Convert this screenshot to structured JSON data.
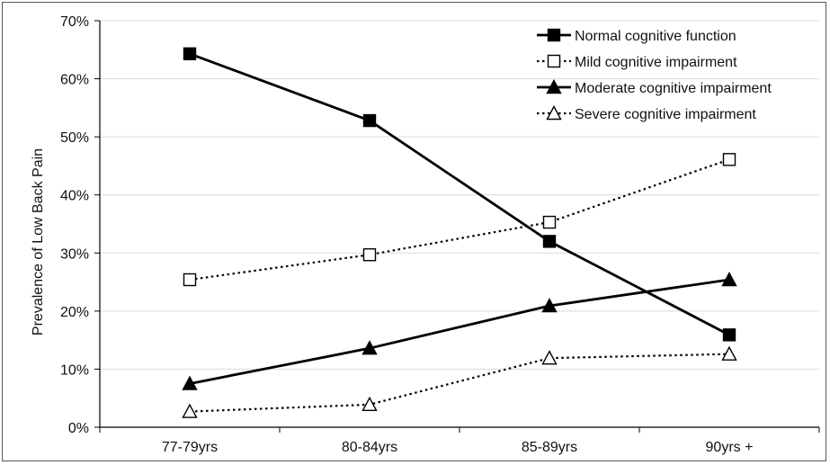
{
  "chart_data": {
    "type": "line",
    "categories": [
      "77-79yrs",
      "80-84yrs",
      "85-89yrs",
      "90yrs +"
    ],
    "ylabel": "Prevalence of Low Back Pain",
    "xlabel": "",
    "ylim": [
      0,
      70
    ],
    "yticks": [
      "0%",
      "10%",
      "20%",
      "30%",
      "40%",
      "50%",
      "60%",
      "70%"
    ],
    "grid": true,
    "legend_position": "top-right",
    "series": [
      {
        "name": "Normal cognitive function",
        "values": [
          64.3,
          52.8,
          32.0,
          15.9
        ],
        "marker": "square-filled",
        "line": "solid"
      },
      {
        "name": "Mild cognitive impairment",
        "values": [
          25.4,
          29.7,
          35.3,
          46.1
        ],
        "marker": "square-open",
        "line": "dotted"
      },
      {
        "name": "Moderate cognitive impairment",
        "values": [
          7.5,
          13.6,
          20.9,
          25.4
        ],
        "marker": "triangle-filled",
        "line": "solid"
      },
      {
        "name": "Severe cognitive impairment",
        "values": [
          2.7,
          3.9,
          11.9,
          12.6
        ],
        "marker": "triangle-open",
        "line": "dotted"
      }
    ]
  },
  "colors": {
    "line": "#000000",
    "grid": "#d9d9d9",
    "axis": "#000000"
  }
}
